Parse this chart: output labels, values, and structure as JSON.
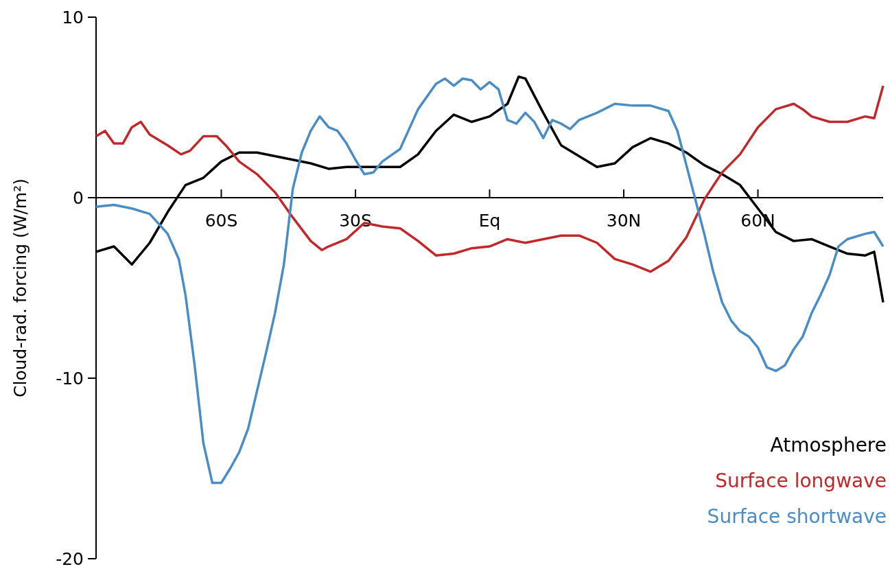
{
  "chart_data": {
    "type": "line",
    "ylabel": "Cloud-rad. forcing (W/m²)",
    "xlim": [
      -88,
      88
    ],
    "ylim": [
      -20,
      10
    ],
    "yticks": [
      -20,
      -10,
      0,
      10
    ],
    "xticks": [
      {
        "value": -60,
        "label": "60S"
      },
      {
        "value": -30,
        "label": "30S"
      },
      {
        "value": 0,
        "label": "Eq"
      },
      {
        "value": 30,
        "label": "30N"
      },
      {
        "value": 60,
        "label": "60N"
      }
    ],
    "grid": false,
    "legend": "bottom right",
    "marker": "none",
    "line_style": "solid",
    "series": [
      {
        "name": "Atmosphere",
        "color": "#000000",
        "x": [
          -88,
          -84,
          -80,
          -76,
          -72,
          -68,
          -64,
          -60,
          -56,
          -52,
          -48,
          -44,
          -40,
          -36,
          -32,
          -28,
          -24,
          -20,
          -16,
          -12,
          -8,
          -4,
          0,
          4,
          6.5,
          8,
          12,
          16,
          20,
          24,
          28,
          32,
          36,
          40,
          44,
          48,
          52,
          56,
          60,
          64,
          68,
          72,
          76,
          80,
          84,
          86,
          88
        ],
        "values": [
          -3.0,
          -2.7,
          -3.7,
          -2.5,
          -0.8,
          0.7,
          1.1,
          2.0,
          2.5,
          2.5,
          2.3,
          2.1,
          1.9,
          1.6,
          1.7,
          1.7,
          1.7,
          1.7,
          2.4,
          3.7,
          4.6,
          4.2,
          4.5,
          5.2,
          6.7,
          6.6,
          4.7,
          2.9,
          2.3,
          1.7,
          1.9,
          2.8,
          3.3,
          3.0,
          2.5,
          1.8,
          1.3,
          0.7,
          -0.6,
          -1.9,
          -2.4,
          -2.3,
          -2.7,
          -3.1,
          -3.2,
          -3.0,
          -5.8
        ]
      },
      {
        "name": "Surface longwave",
        "color": "#c0282a",
        "x": [
          -88,
          -86,
          -84,
          -82,
          -80,
          -78,
          -76,
          -72,
          -69,
          -67,
          -64,
          -61,
          -59,
          -56,
          -52,
          -48,
          -44,
          -40,
          -37.5,
          -36,
          -32,
          -28,
          -24,
          -20,
          -16,
          -12,
          -8,
          -4,
          0,
          4,
          8,
          12,
          16,
          20,
          24,
          28,
          32,
          36,
          40,
          44,
          48,
          52,
          56,
          60,
          64,
          68,
          70,
          72,
          76,
          80,
          84,
          86,
          88
        ],
        "values": [
          3.4,
          3.7,
          3.0,
          3.0,
          3.9,
          4.2,
          3.5,
          2.9,
          2.4,
          2.6,
          3.4,
          3.4,
          2.9,
          2.0,
          1.3,
          0.3,
          -1.1,
          -2.4,
          -2.9,
          -2.7,
          -2.3,
          -1.4,
          -1.6,
          -1.7,
          -2.4,
          -3.2,
          -3.1,
          -2.8,
          -2.7,
          -2.3,
          -2.5,
          -2.3,
          -2.1,
          -2.1,
          -2.5,
          -3.4,
          -3.7,
          -4.1,
          -3.5,
          -2.2,
          -0.1,
          1.4,
          2.4,
          3.9,
          4.9,
          5.2,
          4.9,
          4.5,
          4.2,
          4.2,
          4.5,
          4.4,
          6.2
        ]
      },
      {
        "name": "Surface shortwave",
        "color": "#4a8dc4",
        "x": [
          -88,
          -84,
          -80,
          -76,
          -72,
          -69.5,
          -68,
          -66,
          -64,
          -62,
          -60,
          -58,
          -56,
          -54,
          -52,
          -50,
          -48,
          -46,
          -44,
          -42,
          -40,
          -38,
          -36,
          -34,
          -32,
          -30,
          -28,
          -26,
          -24,
          -20,
          -16,
          -12,
          -10,
          -8,
          -6,
          -4,
          -2,
          0,
          2,
          4,
          6,
          8,
          10,
          12,
          14,
          16,
          18,
          20,
          24,
          28,
          32,
          36,
          40,
          42,
          44,
          46,
          48,
          50,
          52,
          54,
          56,
          58,
          60,
          62,
          64,
          66,
          68,
          70,
          72,
          74,
          76,
          78,
          80,
          84,
          86,
          88
        ],
        "values": [
          -0.5,
          -0.4,
          -0.6,
          -0.9,
          -2.0,
          -3.4,
          -5.4,
          -9.2,
          -13.6,
          -15.8,
          -15.8,
          -15.0,
          -14.1,
          -12.8,
          -10.7,
          -8.6,
          -6.4,
          -3.7,
          0.5,
          2.5,
          3.7,
          4.5,
          3.9,
          3.7,
          3.0,
          2.1,
          1.3,
          1.4,
          2.0,
          2.7,
          4.9,
          6.3,
          6.6,
          6.2,
          6.6,
          6.5,
          6.0,
          6.4,
          6.0,
          4.3,
          4.1,
          4.7,
          4.2,
          3.3,
          4.3,
          4.1,
          3.8,
          4.3,
          4.7,
          5.2,
          5.1,
          5.1,
          4.8,
          3.7,
          1.8,
          -0.1,
          -2.0,
          -4.1,
          -5.8,
          -6.8,
          -7.4,
          -7.7,
          -8.3,
          -9.4,
          -9.6,
          -9.3,
          -8.4,
          -7.7,
          -6.4,
          -5.4,
          -4.3,
          -2.7,
          -2.3,
          -2.0,
          -1.9,
          -2.7
        ]
      }
    ]
  }
}
